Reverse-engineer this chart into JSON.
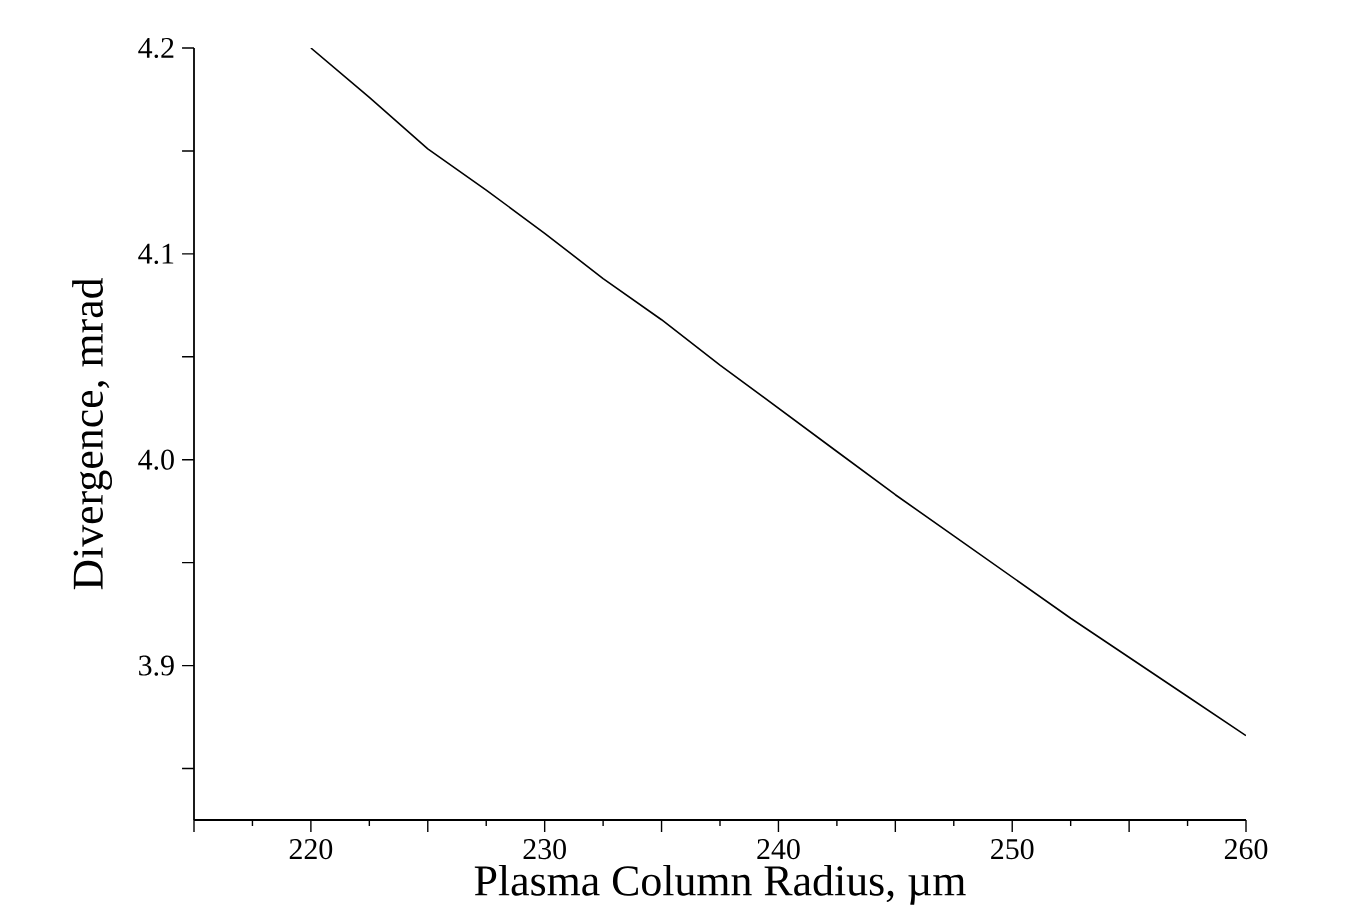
{
  "chart_data": {
    "type": "line",
    "xlabel": "Plasma Column Radius,  µm",
    "ylabel": "Divergence,  mrad",
    "xlim": [
      215,
      260
    ],
    "ylim": [
      3.825,
      4.2
    ],
    "xticks": [
      {
        "value": 215,
        "label": null
      },
      220,
      {
        "value": 225,
        "label": null
      },
      230,
      {
        "value": 235,
        "label": null
      },
      240,
      {
        "value": 245,
        "label": null
      },
      250,
      {
        "value": 255,
        "label": null
      },
      260
    ],
    "yticks": [
      {
        "value": 3.85,
        "label": null
      },
      3.9,
      {
        "value": 3.95,
        "label": null
      },
      {
        "value": 4.0,
        "label": "4.0"
      },
      {
        "value": 4.05,
        "label": null
      },
      4.1,
      {
        "value": 4.15,
        "label": null
      },
      4.2
    ],
    "grid": false,
    "legend": false,
    "marker": "none",
    "line_style": "solid",
    "series": [
      {
        "color": "#000000",
        "x": [
          220,
          222.5,
          225,
          227.5,
          230,
          232.5,
          235,
          237.5,
          240,
          242.5,
          245,
          247.5,
          250,
          252.5,
          255,
          257.5,
          260
        ],
        "values": [
          4.2,
          4.176,
          4.151,
          4.131,
          4.11,
          4.088,
          4.068,
          4.046,
          4.025,
          4.004,
          3.983,
          3.963,
          3.943,
          3.923,
          3.904,
          3.885,
          3.866
        ]
      }
    ]
  }
}
